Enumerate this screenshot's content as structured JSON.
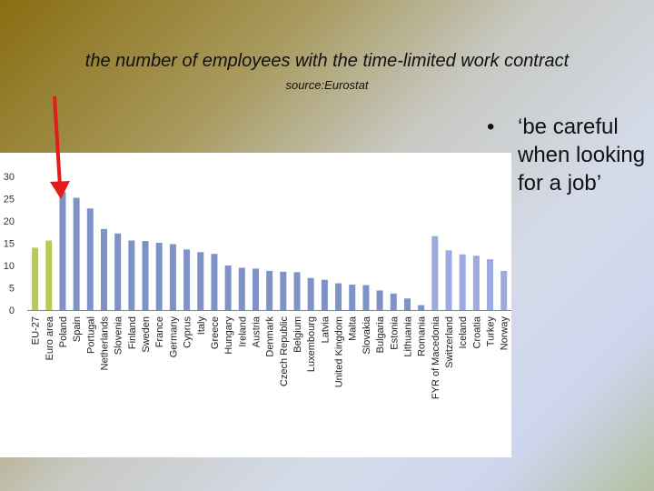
{
  "slide": {
    "title": "the number of employees with the time-limited work contract",
    "subtitle": "source:Eurostat",
    "bullet_symbol": "•",
    "bullet_text": "‘be careful when looking for a job’"
  },
  "colors": {
    "aggregate_bar": "#b5cb53",
    "country_bar": "#7f92c6",
    "non_eu_bar": "#9daadf",
    "arrow": "#e31b1b",
    "axis": "#888888"
  },
  "annotation": {
    "type": "arrow",
    "points_to": "Poland"
  },
  "chart_data": {
    "type": "bar",
    "title": "",
    "xlabel": "",
    "ylabel": "",
    "ylim": [
      0,
      30
    ],
    "yticks": [
      0,
      5,
      10,
      15,
      20,
      25,
      30
    ],
    "grid": false,
    "legend": "none",
    "categories": [
      "EU-27",
      "Euro area",
      "Poland",
      "Spain",
      "Portugal",
      "Netherlands",
      "Slovenia",
      "Finland",
      "Sweden",
      "France",
      "Germany",
      "Cyprus",
      "Italy",
      "Greece",
      "Hungary",
      "Ireland",
      "Austria",
      "Denmark",
      "Czech Republic",
      "Belgium",
      "Luxembourg",
      "Latvia",
      "United Kingdom",
      "Malta",
      "Slovakia",
      "Bulgaria",
      "Estonia",
      "Lithuania",
      "Romania",
      "FYR of Macedonia",
      "Switzerland",
      "Iceland",
      "Croatia",
      "Turkey",
      "Norway"
    ],
    "values": [
      14,
      15.6,
      26.5,
      25.2,
      22.8,
      18.2,
      17.2,
      15.6,
      15.5,
      15.1,
      14.8,
      13.6,
      13.0,
      12.6,
      10.0,
      9.5,
      9.3,
      8.8,
      8.6,
      8.5,
      7.2,
      6.8,
      6.0,
      5.7,
      5.6,
      4.4,
      3.7,
      2.6,
      1.1,
      16.6,
      13.4,
      12.5,
      12.2,
      11.4,
      8.8
    ],
    "groups": [
      "aggregate",
      "aggregate",
      "country",
      "country",
      "country",
      "country",
      "country",
      "country",
      "country",
      "country",
      "country",
      "country",
      "country",
      "country",
      "country",
      "country",
      "country",
      "country",
      "country",
      "country",
      "country",
      "country",
      "country",
      "country",
      "country",
      "country",
      "country",
      "country",
      "country",
      "non_eu",
      "non_eu",
      "non_eu",
      "non_eu",
      "non_eu",
      "non_eu"
    ]
  }
}
